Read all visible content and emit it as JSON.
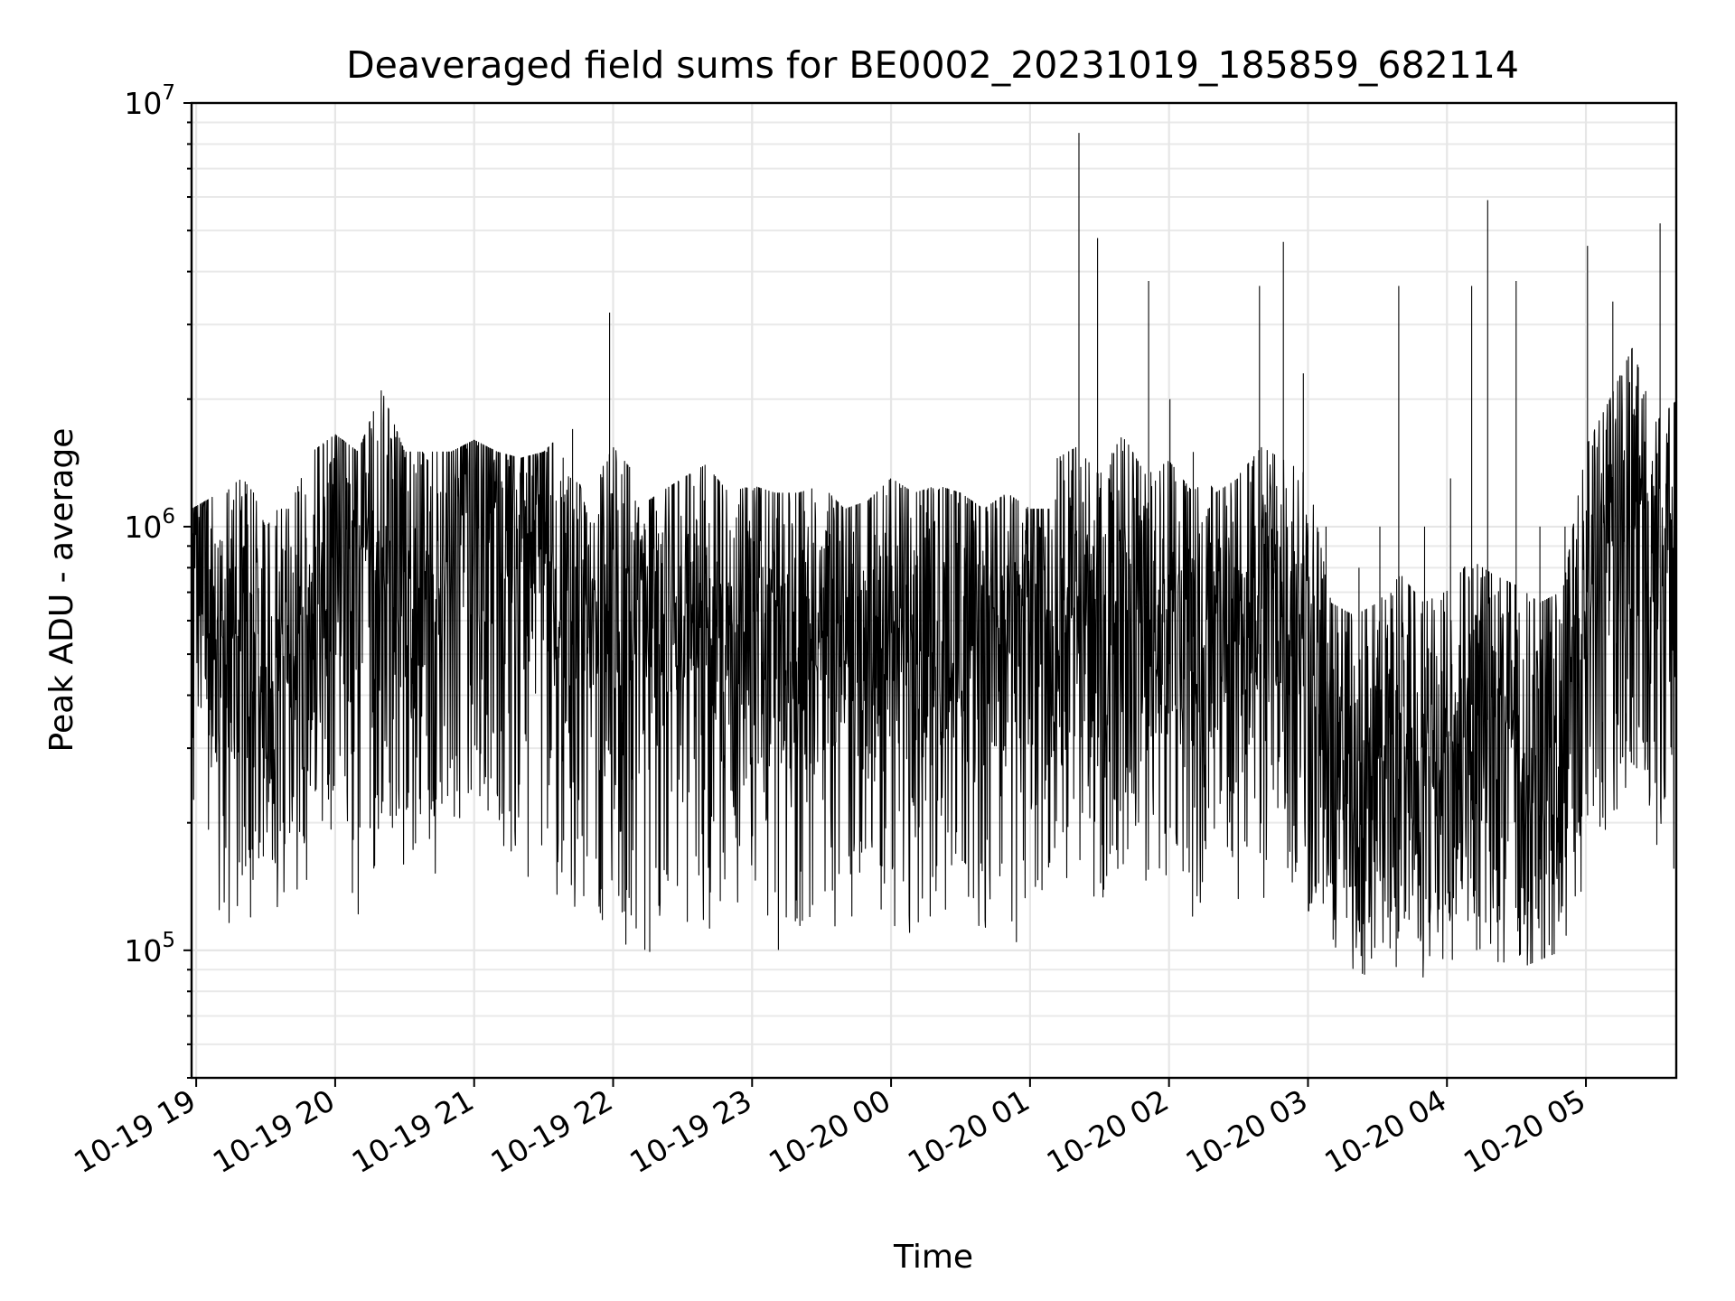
{
  "chart_data": {
    "type": "line",
    "title": "Deaveraged field sums for BE0002_20231019_185859_682114",
    "xlabel": "Time",
    "ylabel": "Peak ADU - average",
    "yscale": "log",
    "ylim": [
      50000,
      10000000
    ],
    "xlim": [
      "2023-10-19 18:58",
      "2023-10-20 05:39"
    ],
    "grid": true,
    "line_color": "#000000",
    "x_tick_labels": [
      "10-19 19",
      "10-19 20",
      "10-19 21",
      "10-19 22",
      "10-19 23",
      "10-20 00",
      "10-20 01",
      "10-20 02",
      "10-20 03",
      "10-20 04",
      "10-20 05"
    ],
    "y_tick_labels": [
      {
        "value": 100000,
        "base": "10",
        "exp": "5"
      },
      {
        "value": 1000000,
        "base": "10",
        "exp": "6"
      },
      {
        "value": 10000000,
        "base": "10",
        "exp": "7"
      }
    ],
    "series": [
      {
        "x": [
          "2023-10-19 18:58",
          "2023-10-19 19:10",
          "2023-10-19 19:20",
          "2023-10-19 19:30",
          "2023-10-19 19:40",
          "2023-10-19 19:50",
          "2023-10-19 20:00",
          "2023-10-19 20:10",
          "2023-10-19 20:20",
          "2023-10-19 20:30",
          "2023-10-19 20:40",
          "2023-10-19 20:50",
          "2023-10-19 21:00",
          "2023-10-19 21:10",
          "2023-10-19 21:20",
          "2023-10-19 21:30",
          "2023-10-19 21:40",
          "2023-10-19 21:50",
          "2023-10-19 22:00",
          "2023-10-19 22:10",
          "2023-10-19 22:20",
          "2023-10-19 22:30",
          "2023-10-19 22:40",
          "2023-10-19 22:50",
          "2023-10-19 23:00",
          "2023-10-19 23:10",
          "2023-10-19 23:20",
          "2023-10-19 23:30",
          "2023-10-19 23:40",
          "2023-10-19 23:50",
          "2023-10-20 00:00",
          "2023-10-20 00:10",
          "2023-10-20 00:20",
          "2023-10-20 00:30",
          "2023-10-20 00:40",
          "2023-10-20 00:50",
          "2023-10-20 01:00",
          "2023-10-20 01:10",
          "2023-10-20 01:20",
          "2023-10-20 01:30",
          "2023-10-20 01:40",
          "2023-10-20 01:50",
          "2023-10-20 02:00",
          "2023-10-20 02:10",
          "2023-10-20 02:20",
          "2023-10-20 02:30",
          "2023-10-20 02:40",
          "2023-10-20 02:50",
          "2023-10-20 03:00",
          "2023-10-20 03:10",
          "2023-10-20 03:20",
          "2023-10-20 03:30",
          "2023-10-20 03:40",
          "2023-10-20 03:50",
          "2023-10-20 04:00",
          "2023-10-20 04:10",
          "2023-10-20 04:20",
          "2023-10-20 04:30",
          "2023-10-20 04:40",
          "2023-10-20 04:50",
          "2023-10-20 05:00",
          "2023-10-20 05:10",
          "2023-10-20 05:20",
          "2023-10-20 05:30",
          "2023-10-20 05:39"
        ],
        "y": [
          1000000,
          500000,
          650000,
          450000,
          550000,
          700000,
          900000,
          850000,
          1100000,
          800000,
          650000,
          900000,
          1200000,
          1000000,
          900000,
          1100000,
          600000,
          550000,
          700000,
          600000,
          650000,
          700000,
          650000,
          600000,
          550000,
          650000,
          600000,
          550000,
          600000,
          650000,
          600000,
          600000,
          550000,
          650000,
          650000,
          600000,
          600000,
          650000,
          700000,
          600000,
          750000,
          600000,
          650000,
          550000,
          600000,
          600000,
          700000,
          650000,
          600000,
          300000,
          280000,
          300000,
          350000,
          300000,
          320000,
          380000,
          350000,
          330000,
          300000,
          320000,
          700000,
          900000,
          1200000,
          800000,
          900000
        ],
        "min": [
          200000,
          90000,
          110000,
          130000,
          120000,
          150000,
          200000,
          120000,
          160000,
          150000,
          140000,
          180000,
          250000,
          160000,
          150000,
          140000,
          110000,
          95000,
          110000,
          90000,
          100000,
          95000,
          110000,
          120000,
          110000,
          100000,
          95000,
          120000,
          110000,
          120000,
          110000,
          100000,
          120000,
          130000,
          110000,
          100000,
          90000,
          150000,
          140000,
          130000,
          150000,
          110000,
          130000,
          120000,
          150000,
          120000,
          130000,
          120000,
          110000,
          100000,
          90000,
          85000,
          90000,
          85000,
          90000,
          100000,
          95000,
          90000,
          95000,
          100000,
          150000,
          200000,
          250000,
          180000,
          150000
        ],
        "max": [
          1100000,
          1200000,
          1300000,
          1100000,
          1100000,
          1500000,
          1650000,
          1500000,
          2100000,
          1500000,
          1500000,
          1500000,
          1600000,
          1500000,
          1450000,
          1500000,
          1700000,
          1000000,
          3200000,
          1100000,
          1200000,
          1300000,
          1400000,
          1200000,
          1250000,
          1200000,
          1200000,
          1250000,
          1100000,
          1150000,
          1300000,
          1200000,
          1250000,
          1200000,
          1100000,
          1200000,
          1100000,
          1100000,
          8500000,
          4800000,
          1500000,
          3800000,
          2000000,
          1500000,
          1200000,
          1300000,
          3700000,
          4700000,
          2300000,
          1000000,
          800000,
          1000000,
          3700000,
          1000000,
          1300000,
          3700000,
          5900000,
          3800000,
          1000000,
          1000000,
          4600000,
          3400000,
          2800000,
          5200000,
          2200000
        ]
      }
    ]
  }
}
